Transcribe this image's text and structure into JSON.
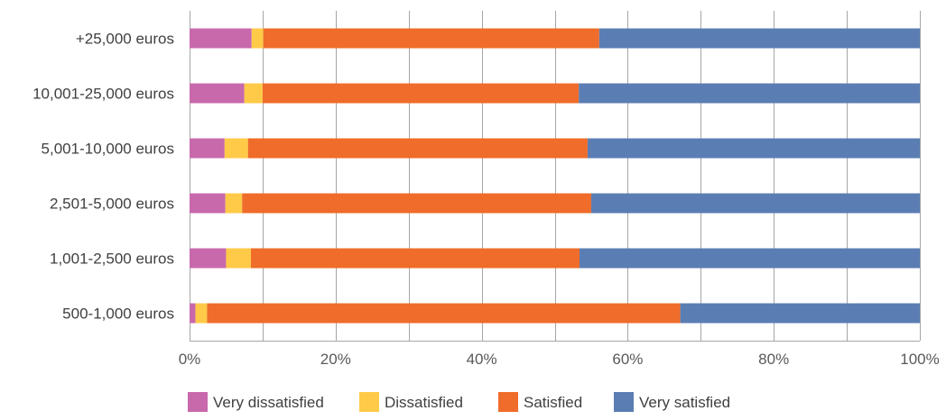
{
  "chart_data": {
    "type": "bar",
    "orientation": "horizontal",
    "stacked": true,
    "percent_stacked": true,
    "categories": [
      "+25,000 euros",
      "10,001-25,000 euros",
      "5,001-10,000 euros",
      "2,501-5,000 euros",
      "1,001-2,500 euros",
      "500-1,000 euros"
    ],
    "series": [
      {
        "name": "Very dissatisfied",
        "color": "#C869AC",
        "values": [
          8.5,
          7.5,
          4.8,
          4.9,
          5.0,
          0.8
        ]
      },
      {
        "name": "Dissatisfied",
        "color": "#FFCA47",
        "values": [
          1.6,
          2.5,
          3.2,
          2.3,
          3.4,
          1.6
        ]
      },
      {
        "name": "Satisfied",
        "color": "#EF6C2A",
        "values": [
          46.0,
          43.3,
          46.5,
          47.8,
          45.0,
          64.8
        ]
      },
      {
        "name": "Very satisfied",
        "color": "#5A7DB3",
        "values": [
          43.9,
          46.7,
          45.5,
          45.0,
          46.6,
          32.8
        ]
      }
    ],
    "xaxis": {
      "ticks": [
        "0%",
        "20%",
        "40%",
        "60%",
        "80%",
        "100%"
      ],
      "range": [
        0,
        100
      ]
    },
    "grid": true,
    "legend_position": "bottom"
  }
}
